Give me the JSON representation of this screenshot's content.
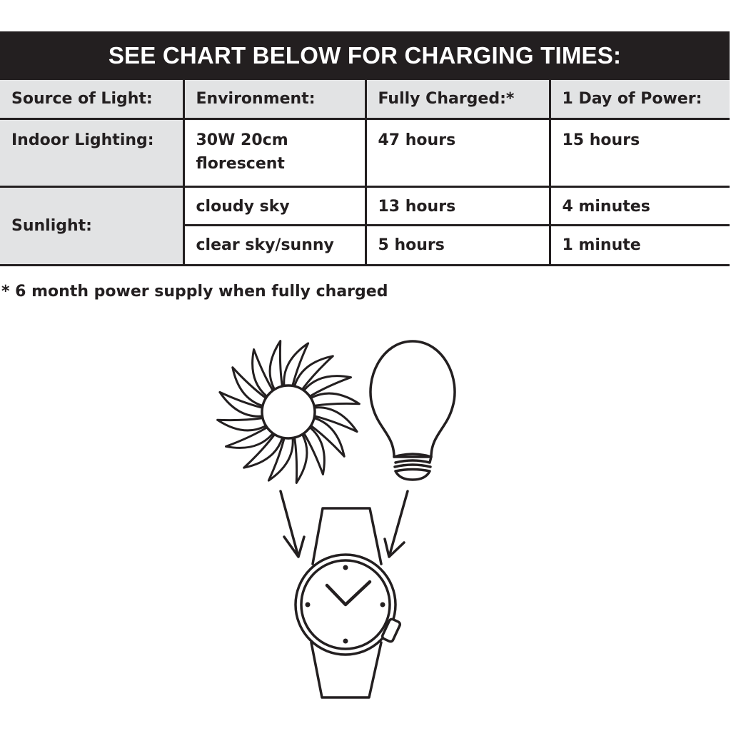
{
  "banner": "SEE CHART BELOW FOR CHARGING TIMES:",
  "table": {
    "headers": [
      "Source of Light:",
      "Environment:",
      "Fully Charged:*",
      "1 Day of Power:"
    ],
    "rows": [
      {
        "source": "Indoor Lighting:",
        "environment_line1": "30W 20cm",
        "environment_line2": "florescent",
        "fully_charged": "47 hours",
        "one_day": "15 hours"
      },
      {
        "source": "Sunlight:",
        "environment": "cloudy sky",
        "fully_charged": "13 hours",
        "one_day": "4 minutes"
      },
      {
        "environment": "clear sky/sunny",
        "fully_charged": "5 hours",
        "one_day": "1 minute"
      }
    ]
  },
  "footnote": "* 6 month power supply when fully charged",
  "illustration": {
    "icons": [
      "sun-icon",
      "light-bulb-icon",
      "arrow-down-icon",
      "wristwatch-icon"
    ],
    "stroke_color": "#231f20",
    "header_bg": "#231f20",
    "label_bg": "#e2e3e4"
  }
}
